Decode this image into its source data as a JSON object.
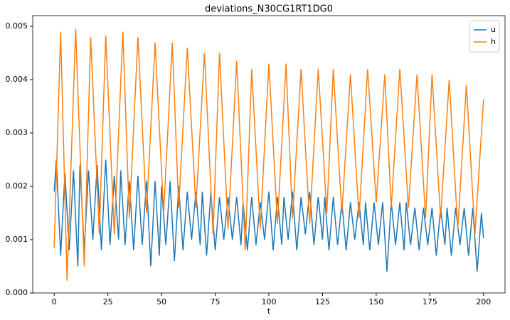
{
  "chart_data": {
    "type": "line",
    "title": "deviations_N30CG1RT1DG0",
    "xlabel": "t",
    "xlim": [
      -10,
      210
    ],
    "xticks": [
      0,
      25,
      50,
      75,
      100,
      125,
      150,
      175,
      200
    ],
    "ylim": [
      0,
      0.0052
    ],
    "yticks": [
      {
        "value": 0,
        "label": "0.000"
      },
      {
        "value": 0.001,
        "label": "0.001"
      },
      {
        "value": 0.002,
        "label": "0.002"
      },
      {
        "value": 0.003,
        "label": "0.003"
      },
      {
        "value": 0.004,
        "label": "0.004"
      },
      {
        "value": 0.005,
        "label": "0.005"
      }
    ],
    "legend": "upper right",
    "grid": false,
    "series": [
      {
        "name": "u",
        "color": "#1f77b4",
        "x": [
          0,
          1,
          3,
          5,
          7,
          9,
          11,
          12,
          14,
          16,
          18,
          20,
          22,
          24,
          26,
          28,
          30,
          31,
          33,
          35,
          37,
          39,
          41,
          43,
          45,
          47,
          49,
          50,
          52,
          54,
          56,
          58,
          60,
          62,
          64,
          66,
          68,
          69,
          71,
          73,
          75,
          77,
          79,
          81,
          83,
          85,
          87,
          88,
          90,
          92,
          94,
          96,
          98,
          100,
          102,
          104,
          106,
          107,
          109,
          111,
          113,
          115,
          117,
          119,
          121,
          123,
          125,
          126,
          128,
          130,
          132,
          134,
          136,
          138,
          140,
          142,
          144,
          145,
          147,
          149,
          151,
          153,
          155,
          157,
          159,
          161,
          163,
          164,
          166,
          168,
          170,
          172,
          174,
          176,
          178,
          180,
          182,
          183,
          185,
          187,
          189,
          191,
          193,
          195,
          197,
          199,
          200
        ],
        "values": [
          0.0019,
          0.0025,
          0.0007,
          0.00225,
          0.0008,
          0.0023,
          0.0005,
          0.0024,
          0.0008,
          0.0023,
          0.001,
          0.0024,
          0.0008,
          0.0025,
          0.0009,
          0.0022,
          0.001,
          0.0023,
          0.0009,
          0.0021,
          0.0008,
          0.0022,
          0.0009,
          0.0021,
          0.0005,
          0.0021,
          0.0007,
          0.002,
          0.0009,
          0.0021,
          0.0006,
          0.002,
          0.0008,
          0.0019,
          0.001,
          0.0019,
          0.0009,
          0.0019,
          0.0007,
          0.0019,
          0.0008,
          0.0018,
          0.001,
          0.0018,
          0.001,
          0.0018,
          0.0009,
          0.0017,
          0.0008,
          0.0018,
          0.0009,
          0.0017,
          0.001,
          0.0019,
          0.0008,
          0.0018,
          0.0009,
          0.0018,
          0.001,
          0.0019,
          0.0008,
          0.0018,
          0.0011,
          0.0019,
          0.0009,
          0.0018,
          0.001,
          0.0018,
          0.0008,
          0.0018,
          0.0009,
          0.0017,
          0.0008,
          0.0017,
          0.001,
          0.0017,
          0.0009,
          0.0017,
          0.0008,
          0.0017,
          0.0009,
          0.0017,
          0.0004,
          0.0017,
          0.0009,
          0.0017,
          0.0008,
          0.0017,
          0.0009,
          0.0016,
          0.0008,
          0.0016,
          0.0009,
          0.0016,
          0.0007,
          0.0016,
          0.0009,
          0.0016,
          0.0007,
          0.0016,
          0.0009,
          0.0016,
          0.0007,
          0.0016,
          0.0004,
          0.0015,
          0.00103
        ]
      },
      {
        "name": "h",
        "color": "#ff7f0e",
        "x": [
          0,
          3,
          6,
          10,
          14,
          17,
          21,
          24,
          28,
          32,
          35,
          39,
          43,
          47,
          51,
          55,
          58,
          62,
          66,
          70,
          74,
          77,
          81,
          85,
          89,
          92,
          96,
          100,
          104,
          108,
          111,
          115,
          119,
          123,
          127,
          130,
          134,
          138,
          142,
          146,
          150,
          154,
          157,
          161,
          165,
          169,
          173,
          176,
          180,
          184,
          188,
          192,
          196,
          200
        ],
        "values": [
          0.00085,
          0.0049,
          0.00023,
          0.00495,
          0.0005,
          0.0048,
          0.0011,
          0.00483,
          0.0011,
          0.0049,
          0.0014,
          0.0048,
          0.0015,
          0.0047,
          0.0015,
          0.0047,
          0.0016,
          0.0046,
          0.0016,
          0.0045,
          0.0011,
          0.0045,
          0.0012,
          0.00435,
          0.0008,
          0.0042,
          0.0012,
          0.0043,
          0.0013,
          0.0043,
          0.0014,
          0.0042,
          0.0013,
          0.0042,
          0.0015,
          0.0042,
          0.0015,
          0.0041,
          0.0014,
          0.0042,
          0.0017,
          0.0041,
          0.0016,
          0.0042,
          0.0016,
          0.0041,
          0.0014,
          0.0041,
          0.0014,
          0.004,
          0.0012,
          0.0039,
          0.0011,
          0.00363
        ]
      }
    ]
  }
}
